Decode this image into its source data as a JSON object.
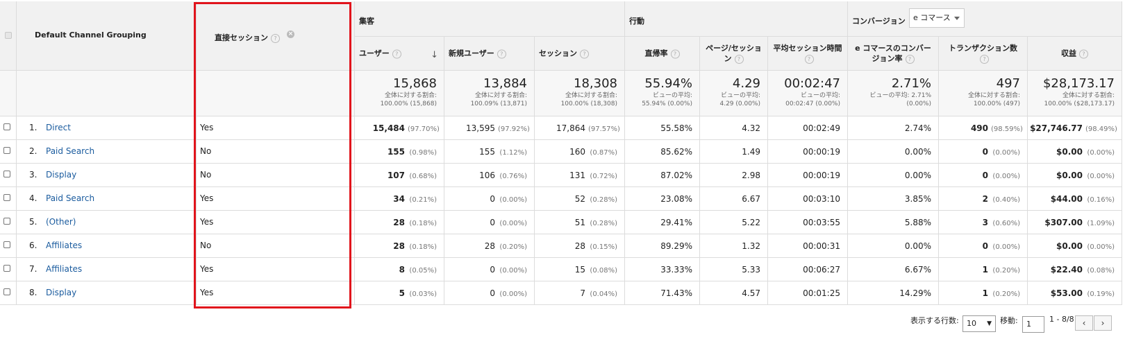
{
  "table": {
    "dimension_header": "Default Channel Grouping",
    "segment_header": "直接セッション",
    "groups": {
      "acquisition": "集客",
      "behavior": "行動",
      "conversion": "コンバージョン"
    },
    "conversion_select": "e コマース",
    "columns": [
      {
        "label": "ユーザー"
      },
      {
        "label": "新規ユーザー"
      },
      {
        "label": "セッション"
      },
      {
        "label": "直帰率"
      },
      {
        "label": "ページ/セッション"
      },
      {
        "label": "平均セッション時間"
      },
      {
        "label": "e コマースのコンバージョン率"
      },
      {
        "label": "トランザクション数"
      },
      {
        "label": "収益"
      }
    ],
    "totals": [
      {
        "value": "15,868",
        "l1": "全体に対する割合:",
        "l2": "100.00% (15,868)"
      },
      {
        "value": "13,884",
        "l1": "全体に対する割合:",
        "l2": "100.09% (13,871)"
      },
      {
        "value": "18,308",
        "l1": "全体に対する割合:",
        "l2": "100.00% (18,308)"
      },
      {
        "value": "55.94%",
        "l1": "ビューの平均:",
        "l2": "55.94% (0.00%)"
      },
      {
        "value": "4.29",
        "l1": "ビューの平均:",
        "l2": "4.29 (0.00%)"
      },
      {
        "value": "00:02:47",
        "l1": "ビューの平均:",
        "l2": "00:02:47 (0.00%)"
      },
      {
        "value": "2.71%",
        "l1": "ビューの平均: 2.71%",
        "l2": "(0.00%)"
      },
      {
        "value": "497",
        "l1": "全体に対する割合:",
        "l2": "100.00% (497)"
      },
      {
        "value": "$28,173.17",
        "l1": "全体に対する割合:",
        "l2": "100.00% ($28,173.17)"
      }
    ],
    "rows": [
      {
        "idx": "1.",
        "channel": "Direct",
        "seg": "Yes",
        "users": "15,484",
        "users_pct": "(97.70%)",
        "new": "13,595",
        "new_pct": "(97.92%)",
        "sess": "17,864",
        "sess_pct": "(97.57%)",
        "bounce": "55.58%",
        "pps": "4.32",
        "dur": "00:02:49",
        "conv": "2.74%",
        "tx": "490",
        "tx_pct": "(98.59%)",
        "rev": "$27,746.77",
        "rev_pct": "(98.49%)"
      },
      {
        "idx": "2.",
        "channel": "Paid Search",
        "seg": "No",
        "users": "155",
        "users_pct": "(0.98%)",
        "new": "155",
        "new_pct": "(1.12%)",
        "sess": "160",
        "sess_pct": "(0.87%)",
        "bounce": "85.62%",
        "pps": "1.49",
        "dur": "00:00:19",
        "conv": "0.00%",
        "tx": "0",
        "tx_pct": "(0.00%)",
        "rev": "$0.00",
        "rev_pct": "(0.00%)"
      },
      {
        "idx": "3.",
        "channel": "Display",
        "seg": "No",
        "users": "107",
        "users_pct": "(0.68%)",
        "new": "106",
        "new_pct": "(0.76%)",
        "sess": "131",
        "sess_pct": "(0.72%)",
        "bounce": "87.02%",
        "pps": "2.98",
        "dur": "00:00:19",
        "conv": "0.00%",
        "tx": "0",
        "tx_pct": "(0.00%)",
        "rev": "$0.00",
        "rev_pct": "(0.00%)"
      },
      {
        "idx": "4.",
        "channel": "Paid Search",
        "seg": "Yes",
        "users": "34",
        "users_pct": "(0.21%)",
        "new": "0",
        "new_pct": "(0.00%)",
        "sess": "52",
        "sess_pct": "(0.28%)",
        "bounce": "23.08%",
        "pps": "6.67",
        "dur": "00:03:10",
        "conv": "3.85%",
        "tx": "2",
        "tx_pct": "(0.40%)",
        "rev": "$44.00",
        "rev_pct": "(0.16%)"
      },
      {
        "idx": "5.",
        "channel": "(Other)",
        "seg": "Yes",
        "users": "28",
        "users_pct": "(0.18%)",
        "new": "0",
        "new_pct": "(0.00%)",
        "sess": "51",
        "sess_pct": "(0.28%)",
        "bounce": "29.41%",
        "pps": "5.22",
        "dur": "00:03:55",
        "conv": "5.88%",
        "tx": "3",
        "tx_pct": "(0.60%)",
        "rev": "$307.00",
        "rev_pct": "(1.09%)"
      },
      {
        "idx": "6.",
        "channel": "Affiliates",
        "seg": "No",
        "users": "28",
        "users_pct": "(0.18%)",
        "new": "28",
        "new_pct": "(0.20%)",
        "sess": "28",
        "sess_pct": "(0.15%)",
        "bounce": "89.29%",
        "pps": "1.32",
        "dur": "00:00:31",
        "conv": "0.00%",
        "tx": "0",
        "tx_pct": "(0.00%)",
        "rev": "$0.00",
        "rev_pct": "(0.00%)"
      },
      {
        "idx": "7.",
        "channel": "Affiliates",
        "seg": "Yes",
        "users": "8",
        "users_pct": "(0.05%)",
        "new": "0",
        "new_pct": "(0.00%)",
        "sess": "15",
        "sess_pct": "(0.08%)",
        "bounce": "33.33%",
        "pps": "5.33",
        "dur": "00:06:27",
        "conv": "6.67%",
        "tx": "1",
        "tx_pct": "(0.20%)",
        "rev": "$22.40",
        "rev_pct": "(0.08%)"
      },
      {
        "idx": "8.",
        "channel": "Display",
        "seg": "Yes",
        "users": "5",
        "users_pct": "(0.03%)",
        "new": "0",
        "new_pct": "(0.00%)",
        "sess": "7",
        "sess_pct": "(0.04%)",
        "bounce": "71.43%",
        "pps": "4.57",
        "dur": "00:01:25",
        "conv": "14.29%",
        "tx": "1",
        "tx_pct": "(0.20%)",
        "rev": "$53.00",
        "rev_pct": "(0.19%)"
      }
    ]
  },
  "pager": {
    "rows_label": "表示する行数:",
    "rows_value": "10",
    "goto_label": "移動:",
    "goto_value": "1",
    "range": "1 - 8/8",
    "prev": "‹",
    "next": "›"
  },
  "accent_color": "#e1141c",
  "link_color": "#1a5b9e"
}
